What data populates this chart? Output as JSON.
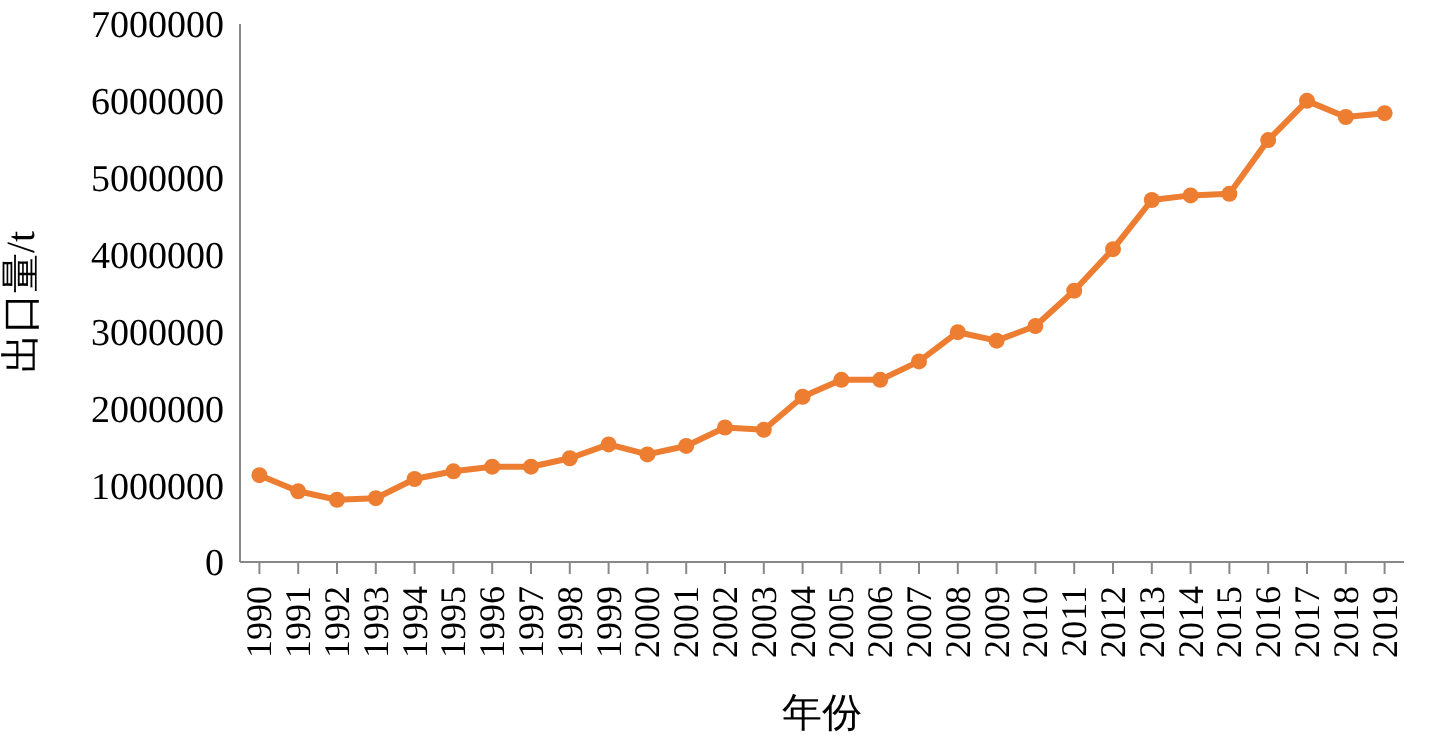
{
  "chart_data": {
    "type": "line",
    "xlabel": "年份",
    "ylabel": "出口量/t",
    "categories": [
      "1990",
      "1991",
      "1992",
      "1993",
      "1994",
      "1995",
      "1996",
      "1997",
      "1998",
      "1999",
      "2000",
      "2001",
      "2002",
      "2003",
      "2004",
      "2005",
      "2006",
      "2007",
      "2008",
      "2009",
      "2010",
      "2011",
      "2012",
      "2013",
      "2014",
      "2015",
      "2016",
      "2017",
      "2018",
      "2019"
    ],
    "series": [
      {
        "color": "#ed7d31",
        "values": [
          1130000,
          920000,
          810000,
          830000,
          1080000,
          1180000,
          1240000,
          1240000,
          1350000,
          1530000,
          1400000,
          1510000,
          1750000,
          1720000,
          2150000,
          2370000,
          2370000,
          2610000,
          2990000,
          2880000,
          3070000,
          3530000,
          4070000,
          4710000,
          4770000,
          4790000,
          5490000,
          6000000,
          5790000,
          5840000
        ]
      }
    ],
    "ylim": [
      0,
      7000000
    ],
    "yticks": [
      0,
      1000000,
      2000000,
      3000000,
      4000000,
      5000000,
      6000000,
      7000000
    ],
    "grid": false,
    "legend": false,
    "marker": "circle",
    "line_style": "solid"
  }
}
